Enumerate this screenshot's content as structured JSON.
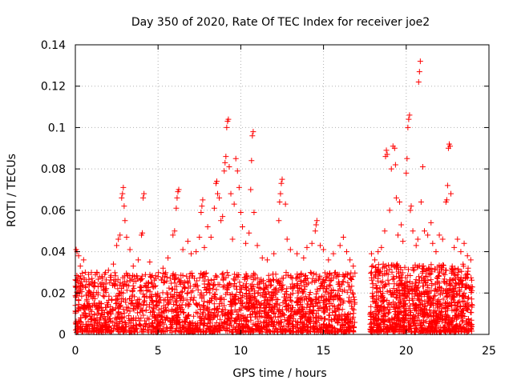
{
  "chart_data": {
    "type": "scatter",
    "title": "Day 350 of 2020, Rate Of TEC Index for receiver joe2",
    "xlabel": "GPS time / hours",
    "ylabel": "ROTI / TECUs",
    "xlim": [
      0,
      25
    ],
    "ylim": [
      0,
      0.14
    ],
    "xticks": [
      0,
      5,
      10,
      15,
      20,
      25
    ],
    "xtick_labels": [
      "0",
      "5",
      "10",
      "15",
      "20",
      "25"
    ],
    "yticks": [
      0,
      0.02,
      0.04,
      0.06,
      0.08,
      0.1,
      0.12,
      0.14
    ],
    "ytick_labels": [
      "0",
      "0.02",
      "0.04",
      "0.06",
      "0.08",
      "0.1",
      "0.12",
      "0.14"
    ],
    "grid": true,
    "marker": "+",
    "series": [
      {
        "name": "ROTI",
        "color": "#ff0000",
        "points": [
          [
            0.05,
            0.041
          ],
          [
            0.1,
            0.04
          ],
          [
            0.2,
            0.038
          ],
          [
            0.3,
            0.033
          ],
          [
            0.5,
            0.036
          ],
          [
            0.6,
            0.03
          ],
          [
            0.8,
            0.029
          ],
          [
            1.0,
            0.027
          ],
          [
            1.3,
            0.03
          ],
          [
            1.6,
            0.028
          ],
          [
            2.0,
            0.031
          ],
          [
            2.3,
            0.034
          ],
          [
            2.5,
            0.043
          ],
          [
            2.6,
            0.046
          ],
          [
            2.7,
            0.048
          ],
          [
            2.8,
            0.066
          ],
          [
            2.85,
            0.068
          ],
          [
            2.9,
            0.071
          ],
          [
            2.95,
            0.062
          ],
          [
            3.0,
            0.055
          ],
          [
            3.1,
            0.047
          ],
          [
            3.3,
            0.041
          ],
          [
            3.5,
            0.033
          ],
          [
            3.8,
            0.036
          ],
          [
            4.0,
            0.048
          ],
          [
            4.05,
            0.049
          ],
          [
            4.1,
            0.066
          ],
          [
            4.15,
            0.068
          ],
          [
            4.5,
            0.035
          ],
          [
            5.0,
            0.028
          ],
          [
            5.3,
            0.032
          ],
          [
            5.6,
            0.037
          ],
          [
            5.9,
            0.048
          ],
          [
            6.0,
            0.05
          ],
          [
            6.1,
            0.061
          ],
          [
            6.15,
            0.066
          ],
          [
            6.2,
            0.069
          ],
          [
            6.25,
            0.07
          ],
          [
            6.5,
            0.041
          ],
          [
            6.8,
            0.045
          ],
          [
            7.0,
            0.039
          ],
          [
            7.3,
            0.04
          ],
          [
            7.5,
            0.047
          ],
          [
            7.6,
            0.059
          ],
          [
            7.65,
            0.062
          ],
          [
            7.7,
            0.065
          ],
          [
            7.8,
            0.042
          ],
          [
            8.0,
            0.052
          ],
          [
            8.2,
            0.047
          ],
          [
            8.4,
            0.061
          ],
          [
            8.5,
            0.073
          ],
          [
            8.55,
            0.074
          ],
          [
            8.6,
            0.068
          ],
          [
            8.7,
            0.066
          ],
          [
            8.8,
            0.055
          ],
          [
            8.9,
            0.057
          ],
          [
            9.0,
            0.079
          ],
          [
            9.05,
            0.083
          ],
          [
            9.1,
            0.086
          ],
          [
            9.15,
            0.1
          ],
          [
            9.2,
            0.103
          ],
          [
            9.25,
            0.104
          ],
          [
            9.3,
            0.081
          ],
          [
            9.4,
            0.068
          ],
          [
            9.5,
            0.046
          ],
          [
            9.6,
            0.063
          ],
          [
            9.7,
            0.085
          ],
          [
            9.8,
            0.079
          ],
          [
            9.9,
            0.071
          ],
          [
            10.0,
            0.059
          ],
          [
            10.1,
            0.052
          ],
          [
            10.3,
            0.044
          ],
          [
            10.5,
            0.049
          ],
          [
            10.6,
            0.07
          ],
          [
            10.65,
            0.084
          ],
          [
            10.7,
            0.096
          ],
          [
            10.75,
            0.098
          ],
          [
            10.8,
            0.059
          ],
          [
            11.0,
            0.043
          ],
          [
            11.3,
            0.037
          ],
          [
            11.6,
            0.036
          ],
          [
            12.0,
            0.039
          ],
          [
            12.3,
            0.055
          ],
          [
            12.35,
            0.064
          ],
          [
            12.4,
            0.068
          ],
          [
            12.45,
            0.073
          ],
          [
            12.5,
            0.075
          ],
          [
            12.7,
            0.063
          ],
          [
            12.8,
            0.046
          ],
          [
            13.0,
            0.041
          ],
          [
            13.4,
            0.039
          ],
          [
            13.8,
            0.037
          ],
          [
            14.0,
            0.042
          ],
          [
            14.3,
            0.044
          ],
          [
            14.5,
            0.05
          ],
          [
            14.55,
            0.053
          ],
          [
            14.6,
            0.055
          ],
          [
            14.8,
            0.043
          ],
          [
            15.0,
            0.041
          ],
          [
            15.3,
            0.036
          ],
          [
            15.6,
            0.039
          ],
          [
            16.0,
            0.043
          ],
          [
            16.2,
            0.047
          ],
          [
            16.4,
            0.04
          ],
          [
            16.6,
            0.036
          ],
          [
            16.8,
            0.033
          ],
          [
            17.9,
            0.039
          ],
          [
            18.1,
            0.036
          ],
          [
            18.3,
            0.04
          ],
          [
            18.5,
            0.042
          ],
          [
            18.7,
            0.05
          ],
          [
            18.75,
            0.086
          ],
          [
            18.8,
            0.089
          ],
          [
            18.85,
            0.087
          ],
          [
            19.0,
            0.06
          ],
          [
            19.1,
            0.08
          ],
          [
            19.2,
            0.091
          ],
          [
            19.3,
            0.09
          ],
          [
            19.35,
            0.082
          ],
          [
            19.4,
            0.066
          ],
          [
            19.5,
            0.048
          ],
          [
            19.6,
            0.064
          ],
          [
            19.7,
            0.053
          ],
          [
            19.8,
            0.045
          ],
          [
            20.0,
            0.078
          ],
          [
            20.05,
            0.085
          ],
          [
            20.1,
            0.1
          ],
          [
            20.15,
            0.104
          ],
          [
            20.2,
            0.106
          ],
          [
            20.25,
            0.06
          ],
          [
            20.3,
            0.062
          ],
          [
            20.4,
            0.05
          ],
          [
            20.6,
            0.043
          ],
          [
            20.7,
            0.046
          ],
          [
            20.75,
            0.122
          ],
          [
            20.8,
            0.127
          ],
          [
            20.85,
            0.132
          ],
          [
            20.9,
            0.064
          ],
          [
            21.0,
            0.081
          ],
          [
            21.1,
            0.05
          ],
          [
            21.3,
            0.048
          ],
          [
            21.5,
            0.054
          ],
          [
            21.6,
            0.044
          ],
          [
            21.8,
            0.04
          ],
          [
            22.0,
            0.048
          ],
          [
            22.2,
            0.046
          ],
          [
            22.4,
            0.064
          ],
          [
            22.45,
            0.065
          ],
          [
            22.5,
            0.072
          ],
          [
            22.55,
            0.09
          ],
          [
            22.6,
            0.092
          ],
          [
            22.65,
            0.091
          ],
          [
            22.7,
            0.068
          ],
          [
            22.9,
            0.042
          ],
          [
            23.1,
            0.046
          ],
          [
            23.3,
            0.04
          ],
          [
            23.5,
            0.044
          ],
          [
            23.7,
            0.038
          ],
          [
            23.9,
            0.036
          ]
        ]
      }
    ],
    "dense_bands": [
      {
        "x_start": 0.0,
        "x_end": 16.9,
        "y_min": 0.001,
        "y_max": 0.03,
        "count": 2200
      },
      {
        "x_start": 17.8,
        "x_end": 24.0,
        "y_min": 0.001,
        "y_max": 0.034,
        "count": 1100
      }
    ]
  }
}
